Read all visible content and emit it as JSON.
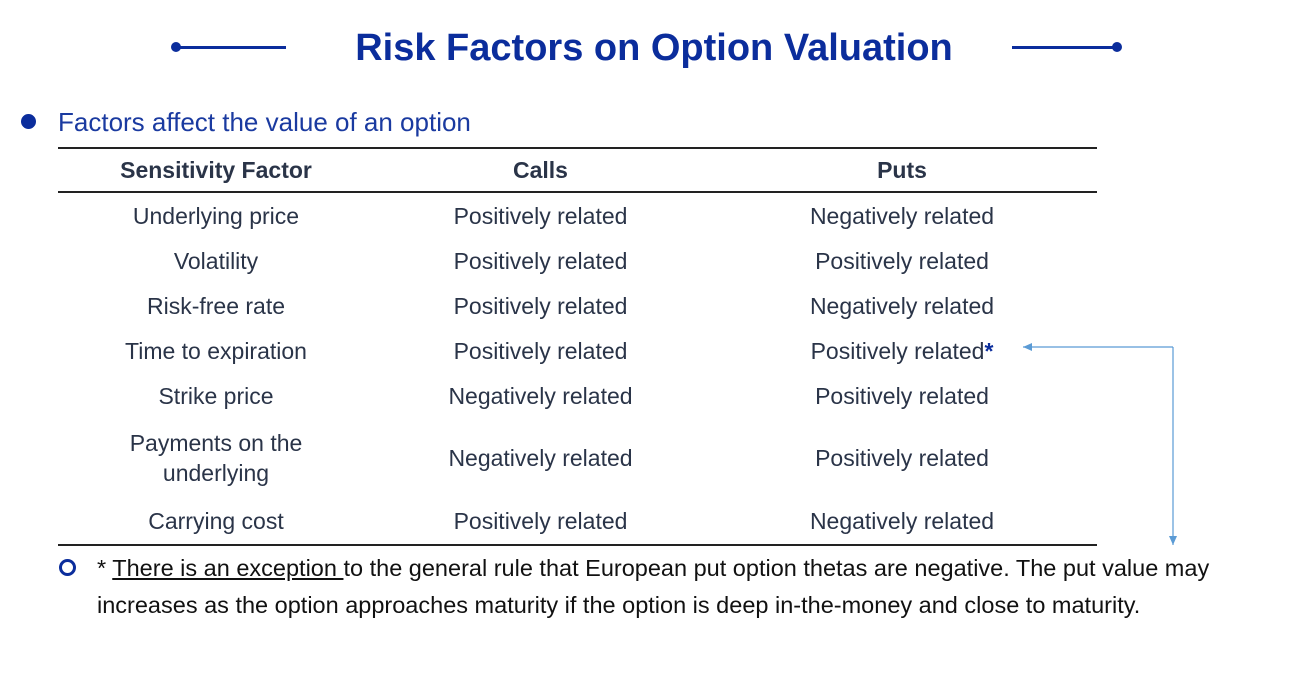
{
  "title": "Risk Factors on Option Valuation",
  "heading": "Factors affect the value of an option",
  "table": {
    "headers": [
      "Sensitivity Factor",
      "Calls",
      "Puts"
    ],
    "rows": [
      {
        "factor": "Underlying price",
        "calls": "Positively related",
        "puts": "Negatively related",
        "puts_marker": ""
      },
      {
        "factor": "Volatility",
        "calls": "Positively related",
        "puts": "Positively related",
        "puts_marker": ""
      },
      {
        "factor": "Risk-free rate",
        "calls": "Positively related",
        "puts": "Negatively related",
        "puts_marker": ""
      },
      {
        "factor": "Time to expiration",
        "calls": "Positively related",
        "puts": "Positively related",
        "puts_marker": "*"
      },
      {
        "factor": "Strike price",
        "calls": "Negatively related",
        "puts": "Positively related",
        "puts_marker": ""
      },
      {
        "factor_line1": "Payments on the",
        "factor_line2": "underlying",
        "calls": "Negatively related",
        "puts": "Positively related",
        "puts_marker": ""
      },
      {
        "factor": "Carrying cost",
        "calls": "Positively related",
        "puts": "Negatively related",
        "puts_marker": ""
      }
    ]
  },
  "note": {
    "prefix": "* ",
    "underlined": "There is an exception ",
    "rest": "to the general rule that European put option thetas are negative. The put value may increases as the option approaches maturity if the option is deep in-the-money and close to maturity."
  },
  "colors": {
    "title": "#0b2d9c",
    "heading": "#1a3aa0",
    "table_text": "#2a3448",
    "arrow": "#5b9bd5"
  }
}
